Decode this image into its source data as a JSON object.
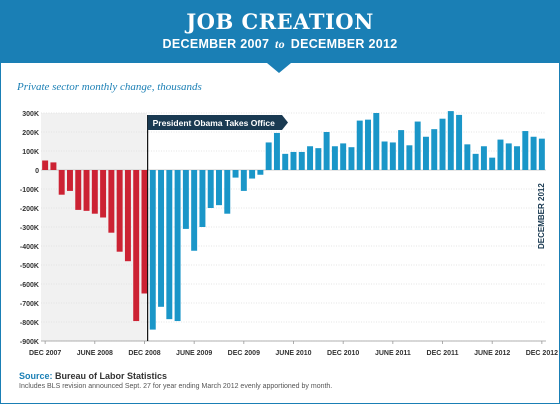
{
  "header": {
    "title": "JOB CREATION",
    "subtitle_start": "DECEMBER 2007",
    "subtitle_to": "to",
    "subtitle_end": "DECEMBER 2012"
  },
  "chart_data": {
    "type": "bar",
    "title": "JOB CREATION",
    "subtitle": "DECEMBER 2007 to DECEMBER 2012",
    "ylabel": "Private sector monthly change, thousands",
    "xlabel": "",
    "ylim": [
      -900,
      300
    ],
    "yticks": [
      300,
      200,
      100,
      0,
      -100,
      -200,
      -300,
      -400,
      -500,
      -600,
      -700,
      -800,
      -900
    ],
    "ytick_labels": [
      "300K",
      "200K",
      "100K",
      "0",
      "-100K",
      "-200K",
      "-300K",
      "-400K",
      "-500K",
      "-600K",
      "-700K",
      "-800K",
      "-900K"
    ],
    "xtick_labels": [
      "DEC 2007",
      "JUNE 2008",
      "DEC 2008",
      "JUNE 2009",
      "DEC 2009",
      "JUNE 2010",
      "DEC 2010",
      "JUNE 2011",
      "DEC 2011",
      "JUNE 2012",
      "DEC 2012"
    ],
    "xtick_month_index": [
      0,
      6,
      12,
      18,
      24,
      30,
      36,
      42,
      48,
      54,
      60
    ],
    "annotation": "President Obama Takes Office",
    "annotation_month_index": 13,
    "end_label": "DECEMBER 2012",
    "colors": {
      "before": "#cc2233",
      "after": "#1a96c8",
      "shade": "#f1f1f1",
      "accent": "#1a7fb5"
    },
    "months": [
      "Dec 2007",
      "Jan 2008",
      "Feb 2008",
      "Mar 2008",
      "Apr 2008",
      "May 2008",
      "Jun 2008",
      "Jul 2008",
      "Aug 2008",
      "Sep 2008",
      "Oct 2008",
      "Nov 2008",
      "Dec 2008",
      "Jan 2009",
      "Feb 2009",
      "Mar 2009",
      "Apr 2009",
      "May 2009",
      "Jun 2009",
      "Jul 2009",
      "Aug 2009",
      "Sep 2009",
      "Oct 2009",
      "Nov 2009",
      "Dec 2009",
      "Jan 2010",
      "Feb 2010",
      "Mar 2010",
      "Apr 2010",
      "May 2010",
      "Jun 2010",
      "Jul 2010",
      "Aug 2010",
      "Sep 2010",
      "Oct 2010",
      "Nov 2010",
      "Dec 2010",
      "Jan 2011",
      "Feb 2011",
      "Mar 2011",
      "Apr 2011",
      "May 2011",
      "Jun 2011",
      "Jul 2011",
      "Aug 2011",
      "Sep 2011",
      "Oct 2011",
      "Nov 2011",
      "Dec 2011",
      "Jan 2012",
      "Feb 2012",
      "Mar 2012",
      "Apr 2012",
      "May 2012",
      "Jun 2012",
      "Jul 2012",
      "Aug 2012",
      "Sep 2012",
      "Oct 2012",
      "Nov 2012",
      "Dec 2012"
    ],
    "values": [
      50,
      40,
      -130,
      -110,
      -210,
      -215,
      -230,
      -250,
      -330,
      -430,
      -480,
      -795,
      -650,
      -840,
      -720,
      -785,
      -795,
      -310,
      -425,
      -300,
      -200,
      -185,
      -230,
      -40,
      -110,
      -45,
      -25,
      145,
      195,
      85,
      95,
      95,
      125,
      115,
      200,
      125,
      140,
      120,
      260,
      265,
      300,
      150,
      145,
      210,
      130,
      255,
      175,
      215,
      270,
      310,
      290,
      135,
      85,
      125,
      65,
      160,
      140,
      125,
      205,
      175,
      165
    ],
    "series_split_index": 13
  },
  "chart_labels": {
    "subtitle": "Private sector monthly change, thousands"
  },
  "footer": {
    "source_label": "Source:",
    "source_text": "Bureau of Labor Statistics",
    "note": "Includes BLS revision announced Sept. 27 for year ending March 2012 evenly apportioned by month."
  }
}
